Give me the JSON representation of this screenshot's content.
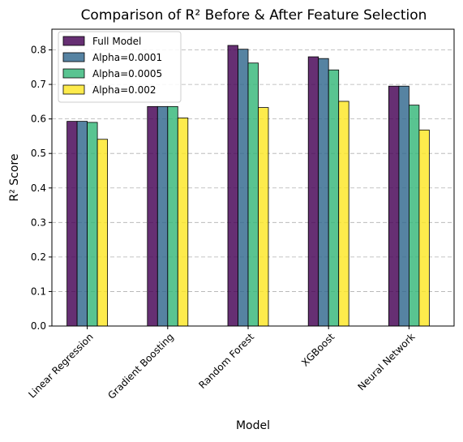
{
  "chart_data": {
    "type": "bar",
    "title": "Comparison of R² Before & After Feature Selection",
    "xlabel": "Model",
    "ylabel": "R² Score",
    "categories": [
      "Linear Regression",
      "Gradient Boosting",
      "Random Forest",
      "XGBoost",
      "Neural Network"
    ],
    "series": [
      {
        "name": "Full Model",
        "color": "#440154",
        "values": [
          0.593,
          0.636,
          0.813,
          0.78,
          0.695
        ]
      },
      {
        "name": "Alpha=0.0001",
        "color": "#31688e",
        "values": [
          0.593,
          0.636,
          0.802,
          0.775,
          0.695
        ]
      },
      {
        "name": "Alpha=0.0005",
        "color": "#35b779",
        "values": [
          0.59,
          0.636,
          0.762,
          0.742,
          0.64
        ]
      },
      {
        "name": "Alpha=0.002",
        "color": "#fde725",
        "values": [
          0.541,
          0.603,
          0.633,
          0.651,
          0.568
        ]
      }
    ],
    "ylim": [
      0,
      0.86
    ],
    "yticks": [
      "0.0",
      "0.1",
      "0.2",
      "0.3",
      "0.4",
      "0.5",
      "0.6",
      "0.7",
      "0.8"
    ],
    "grid": "horizontal dashed",
    "legend_position": "top-left"
  }
}
